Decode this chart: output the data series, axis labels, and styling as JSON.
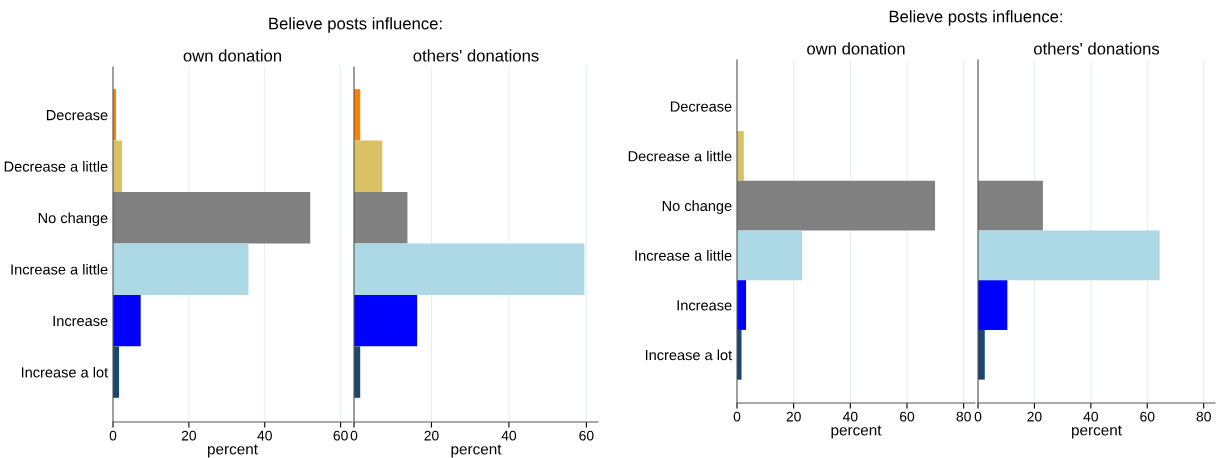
{
  "chart_data": [
    {
      "type": "bar",
      "orientation": "horizontal",
      "title": "Believe posts influence:",
      "subtitle": "own donation",
      "xlabel": "percent",
      "categories": [
        "Decrease",
        "Decrease a little",
        "No change",
        "Increase a little",
        "Increase",
        "Increase a lot"
      ],
      "values": [
        0.8,
        2.4,
        52,
        35.7,
        7.3,
        1.6
      ],
      "colors": [
        "#ff7f00",
        "#d9c264",
        "#808080",
        "#add8e6",
        "#0000ff",
        "#1a476f"
      ],
      "xlim": [
        0,
        63
      ],
      "xticks": [
        0,
        20,
        40,
        60
      ],
      "grid": "x"
    },
    {
      "type": "bar",
      "orientation": "horizontal",
      "subtitle": "others' donations",
      "xlabel": "percent",
      "categories": [
        null,
        null,
        null,
        null,
        null,
        null
      ],
      "values": [
        1.6,
        7.3,
        13.8,
        59.5,
        16.3,
        1.6
      ],
      "colors": [
        "#ff7f00",
        "#d9c264",
        "#808080",
        "#add8e6",
        "#0000ff",
        "#1a476f"
      ],
      "xlim": [
        0,
        63
      ],
      "xticks": [
        0,
        20,
        40,
        60
      ],
      "grid": "x"
    },
    {
      "type": "bar",
      "orientation": "horizontal",
      "title": "Believe posts influence:",
      "subtitle": "own donation",
      "xlabel": "percent",
      "categories": [
        "Decrease",
        "Decrease a little",
        "No change",
        "Increase a little",
        "Increase",
        "Increase a lot"
      ],
      "values": [
        0,
        2.4,
        69.9,
        23,
        3.2,
        1.6
      ],
      "colors": [
        "#ff7f00",
        "#d9c264",
        "#808080",
        "#add8e6",
        "#0000ff",
        "#1a476f"
      ],
      "xlim": [
        0,
        84
      ],
      "xticks": [
        0,
        20,
        40,
        60,
        80
      ],
      "grid": "x"
    },
    {
      "type": "bar",
      "orientation": "horizontal",
      "subtitle": "others' donations",
      "xlabel": "percent",
      "categories": [
        null,
        null,
        null,
        null,
        null,
        null
      ],
      "values": [
        0,
        0,
        23,
        64.4,
        10.4,
        2.4
      ],
      "colors": [
        "#ff7f00",
        "#d9c264",
        "#808080",
        "#add8e6",
        "#0000ff",
        "#1a476f"
      ],
      "xlim": [
        0,
        84
      ],
      "xticks": [
        0,
        20,
        40,
        60,
        80
      ],
      "grid": "x"
    }
  ]
}
